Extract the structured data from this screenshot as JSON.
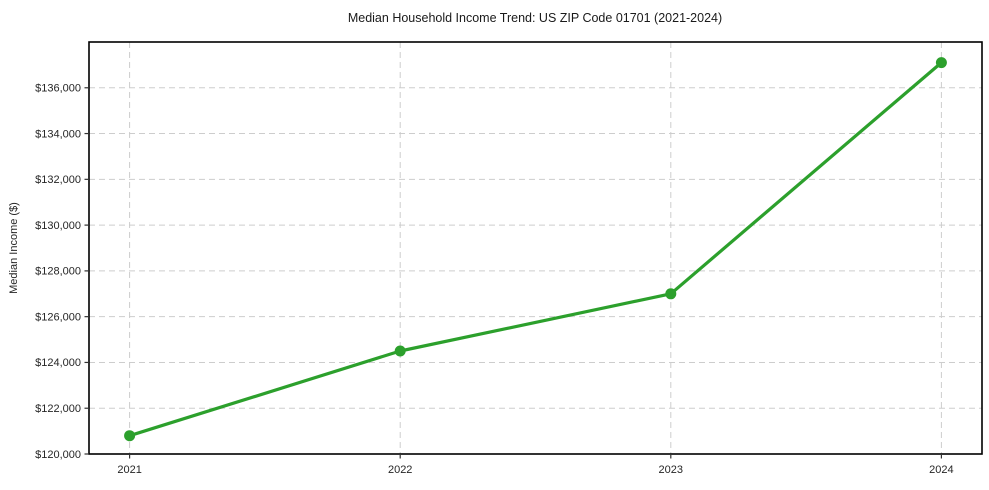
{
  "chart_data": {
    "type": "line",
    "title": "Median Household Income Trend: US ZIP Code 01701 (2021-2024)",
    "xlabel": "",
    "ylabel": "Median Income ($)",
    "x": [
      2021,
      2022,
      2023,
      2024
    ],
    "x_tick_labels": [
      "2021",
      "2022",
      "2023",
      "2024"
    ],
    "series": [
      {
        "name": "median_household_income",
        "values": [
          120800,
          124500,
          127000,
          137100
        ],
        "color": "#2ca02c",
        "marker": "circle"
      }
    ],
    "ylim": [
      120000,
      138000
    ],
    "x_margin_fraction": 0.05,
    "y_ticks": [
      120000,
      122000,
      124000,
      126000,
      128000,
      130000,
      132000,
      134000,
      136000
    ],
    "y_tick_labels": [
      "$120,000",
      "$122,000",
      "$124,000",
      "$126,000",
      "$128,000",
      "$130,000",
      "$132,000",
      "$134,000",
      "$136,000"
    ],
    "grid": true,
    "grid_style": "dashed",
    "grid_color": "#cdcdcd",
    "axis_color": "#000000",
    "text_color": "#262626",
    "background_color": "#ffffff",
    "legend": "none"
  }
}
